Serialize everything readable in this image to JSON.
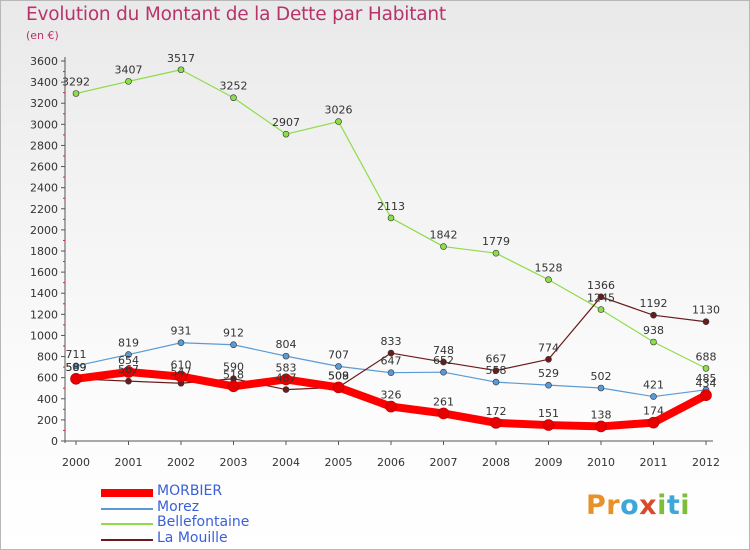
{
  "title": "Evolution du Montant de la Dette par Habitant",
  "unit": "(en €)",
  "logo": {
    "p": "Pr",
    "o": "o",
    "x": "x",
    "i": "i",
    "t": "t",
    "i2": "i"
  },
  "chart_data": {
    "type": "line",
    "title": "Evolution du Montant de la Dette par Habitant",
    "ylabel": "(en €)",
    "xlabel": "",
    "x": [
      "2000",
      "2001",
      "2002",
      "2003",
      "2004",
      "2005",
      "2006",
      "2007",
      "2008",
      "2009",
      "2010",
      "2011",
      "2012"
    ],
    "ylim": [
      0,
      3600
    ],
    "yticks": [
      0,
      200,
      400,
      600,
      800,
      1000,
      1200,
      1400,
      1600,
      1800,
      2000,
      2200,
      2400,
      2600,
      2800,
      3000,
      3200,
      3400,
      3600
    ],
    "grid": false,
    "legend_position": "bottom-left",
    "series": [
      {
        "name": "MORBIER",
        "color": "#ff0000",
        "width": 8,
        "values": [
          589,
          654,
          610,
          518,
          583,
          508,
          326,
          261,
          172,
          151,
          138,
          174,
          434
        ]
      },
      {
        "name": "Morez",
        "color": "#5b9bd5",
        "width": 1.2,
        "values": [
          711,
          819,
          931,
          912,
          804,
          707,
          647,
          652,
          558,
          529,
          502,
          421,
          485
        ]
      },
      {
        "name": "Bellefontaine",
        "color": "#8fdc4b",
        "width": 1.2,
        "values": [
          3292,
          3407,
          3517,
          3252,
          2907,
          3026,
          2113,
          1842,
          1779,
          1528,
          1245,
          938,
          688
        ]
      },
      {
        "name": "La Mouille",
        "color": "#6b1b1b",
        "width": 1.2,
        "values": [
          589,
          567,
          547,
          590,
          487,
          509,
          833,
          748,
          667,
          774,
          1366,
          1192,
          1130
        ]
      }
    ],
    "data_labels": [
      [
        "589",
        "654",
        "610",
        "518",
        "583",
        "508",
        "326",
        "261",
        "172",
        "151",
        "138",
        "174",
        "434"
      ],
      [
        "711",
        "819",
        "931",
        "912",
        "804",
        "707",
        "647",
        "652",
        "558",
        "529",
        "502",
        "421",
        "485"
      ],
      [
        "3292",
        "3407",
        "3517",
        "3252",
        "2907",
        "3026",
        "2113",
        "1842",
        "1779",
        "1528",
        "1245",
        "938",
        "688"
      ],
      [
        "589",
        "567",
        "547",
        "590",
        "487",
        "509",
        "833",
        "748",
        "667",
        "774",
        "1366",
        "1192",
        "1130"
      ]
    ]
  }
}
